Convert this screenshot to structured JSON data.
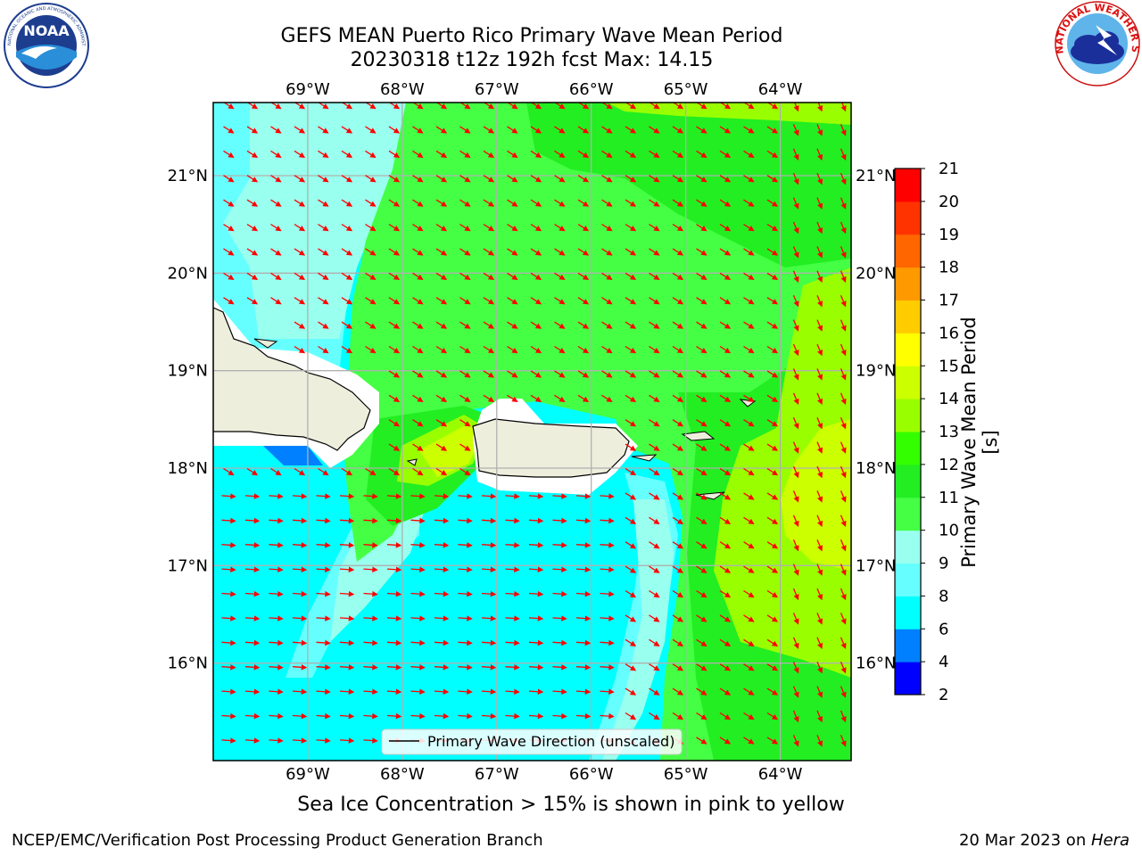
{
  "header": {
    "title_line1": "GEFS MEAN Puerto Rico Primary Wave Mean Period",
    "title_line2": "20230318 t12z 192h fcst   Max: 14.15"
  },
  "logos": {
    "left": "NOAA",
    "left_ring_text": "NATIONAL OCEANIC AND ATMOSPHERIC ADMINISTRATION · U.S. DEPARTMENT OF COMMERCE",
    "right_ring_text": "NATIONAL WEATHER SERVICE"
  },
  "map": {
    "lon_labels": [
      "69°W",
      "68°W",
      "67°W",
      "66°W",
      "65°W",
      "64°W"
    ],
    "lat_labels": [
      "21°N",
      "20°N",
      "19°N",
      "18°N",
      "17°N",
      "16°N"
    ],
    "legend_label": "Primary Wave Direction (unscaled)",
    "arrow_color": "#ff0000",
    "land_color": "#eeeedd",
    "grid": true,
    "lon_range": [
      -70,
      -63.25
    ],
    "lat_range": [
      15,
      21.75
    ]
  },
  "colorbar": {
    "label": "Primary Wave Mean Period [s]",
    "ticks": [
      "2",
      "4",
      "6",
      "8",
      "9",
      "10",
      "11",
      "12",
      "13",
      "14",
      "15",
      "16",
      "17",
      "18",
      "19",
      "20",
      "21"
    ],
    "colors": [
      "#0000ff",
      "#0080ff",
      "#00ffff",
      "#66ffff",
      "#99ffee",
      "#44ff44",
      "#22ee22",
      "#33ff00",
      "#99ff00",
      "#ccff00",
      "#ffff00",
      "#ffcc00",
      "#ff9900",
      "#ff6600",
      "#ff3300",
      "#ff0000"
    ]
  },
  "caption": "Sea Ice Concentration > 15% is shown in pink to yellow",
  "footer": {
    "left": "NCEP/EMC/Verification Post Processing Product Generation Branch",
    "right_date": "20 Mar 2023 on ",
    "right_host": "Hera"
  }
}
